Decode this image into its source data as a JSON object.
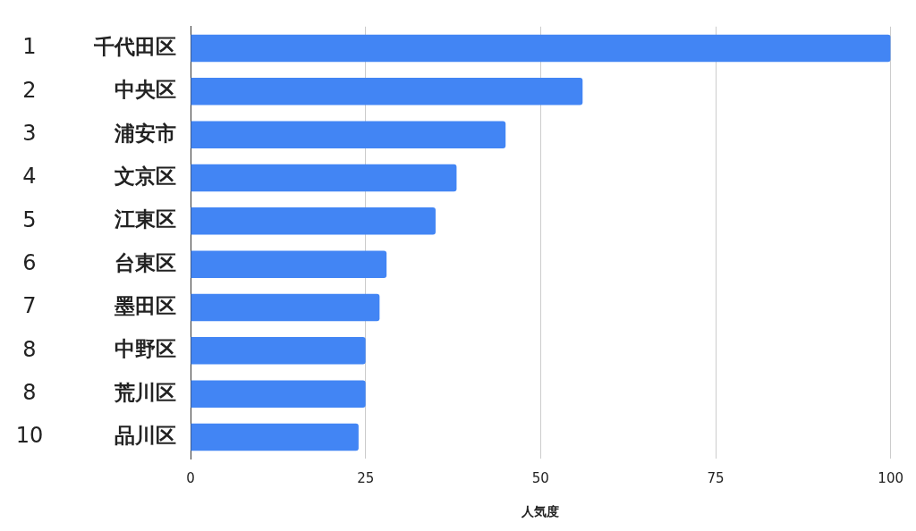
{
  "chart_data": {
    "type": "bar",
    "orientation": "horizontal",
    "categories": [
      "千代田区",
      "中央区",
      "浦安市",
      "文京区",
      "江東区",
      "台東区",
      "墨田区",
      "中野区",
      "荒川区",
      "品川区"
    ],
    "ranks": [
      1,
      2,
      3,
      4,
      5,
      6,
      7,
      8,
      8,
      10
    ],
    "values": [
      100,
      56,
      45,
      38,
      35,
      28,
      27,
      25,
      25,
      24
    ],
    "color": "#4285f4",
    "xlabel": "人気度",
    "xlim": [
      0,
      100
    ],
    "xticks": [
      0,
      25,
      50,
      75,
      100
    ],
    "grid": true
  }
}
